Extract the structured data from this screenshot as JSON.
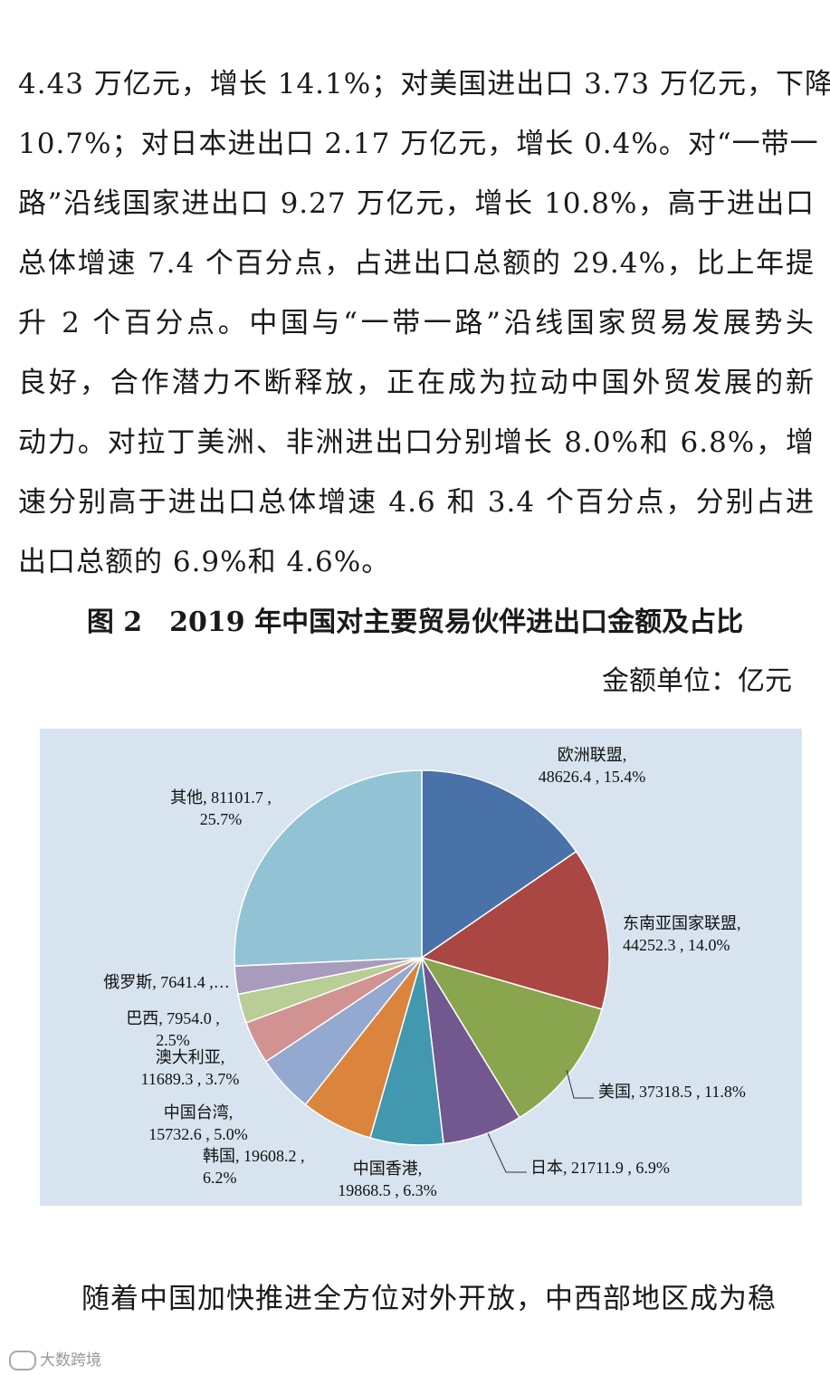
{
  "paragraph1_lines": [
    "4.43 万亿元，增长 14.1%；对美国进出口 3.73 万亿元，下降",
    "10.7%；对日本进出口 2.17 万亿元，增长 0.4%。对“一带一",
    "路”沿线国家进出口 9.27 万亿元，增长 10.8%，高于进出口",
    "总体增速 7.4 个百分点，占进出口总额的 29.4%，比上年提",
    "升 2 个百分点。中国与“一带一路”沿线国家贸易发展势头",
    "良好，合作潜力不断释放，正在成为拉动中国外贸发展的新",
    "动力。对拉丁美洲、非洲进出口分别增长 8.0%和 6.8%，增",
    "速分别高于进出口总体增速 4.6 和 3.4 个百分点，分别占进",
    "出口总额的 6.9%和 4.6%。"
  ],
  "figure_title": "图 2　2019 年中国对主要贸易伙伴进出口金额及占比",
  "unit_label": "金额单位：亿元",
  "chart_data": {
    "type": "pie",
    "start": "12 o'clock, clockwise",
    "slices": [
      {
        "name": "欧洲联盟",
        "value": 48626.4,
        "percent": "15.4%",
        "color": "#4872a8",
        "label_lines": [
          "欧洲联盟,",
          "48626.4 , 15.4%"
        ]
      },
      {
        "name": "东南亚国家联盟",
        "value": 44252.3,
        "percent": "14.0%",
        "color": "#aa4743",
        "label_lines": [
          "东南亚国家联盟,",
          "44252.3 , 14.0%"
        ]
      },
      {
        "name": "美国",
        "value": 37318.5,
        "percent": "11.8%",
        "color": "#89a54e",
        "label_lines": [
          "美国, 37318.5 , 11.8%"
        ]
      },
      {
        "name": "日本",
        "value": 21711.9,
        "percent": "6.9%",
        "color": "#71588f",
        "label_lines": [
          "日本, 21711.9 , 6.9%"
        ]
      },
      {
        "name": "中国香港",
        "value": 19868.5,
        "percent": "6.3%",
        "color": "#4198af",
        "label_lines": [
          "中国香港,",
          "19868.5 , 6.3%"
        ]
      },
      {
        "name": "韩国",
        "value": 19608.2,
        "percent": "6.2%",
        "color": "#db843d",
        "label_lines": [
          "韩国, 19608.2 ,",
          "6.2%"
        ]
      },
      {
        "name": "中国台湾",
        "value": 15732.6,
        "percent": "5.0%",
        "color": "#93a9cf",
        "label_lines": [
          "中国台湾,",
          "15732.6 , 5.0%"
        ]
      },
      {
        "name": "澳大利亚",
        "value": 11689.3,
        "percent": "3.7%",
        "color": "#d19392",
        "label_lines": [
          "澳大利亚,",
          "11689.3 , 3.7%"
        ]
      },
      {
        "name": "巴西",
        "value": 7954.0,
        "percent": "2.5%",
        "color": "#b9cd96",
        "label_lines": [
          "巴西, 7954.0 ,",
          "2.5%"
        ]
      },
      {
        "name": "俄罗斯",
        "value": 7641.4,
        "percent": "",
        "color": "#a99bbd",
        "label_lines": [
          "俄罗斯, 7641.4 ,…"
        ]
      },
      {
        "name": "其他",
        "value": 81101.7,
        "percent": "25.7%",
        "color": "#92c3d5",
        "label_lines": [
          "其他, 81101.7 ,",
          "25.7%"
        ]
      }
    ]
  },
  "paragraph2_lines": [
    "随着中国加快推进全方位对外开放，中西部地区成为稳"
  ],
  "watermark_text": "大数跨境"
}
